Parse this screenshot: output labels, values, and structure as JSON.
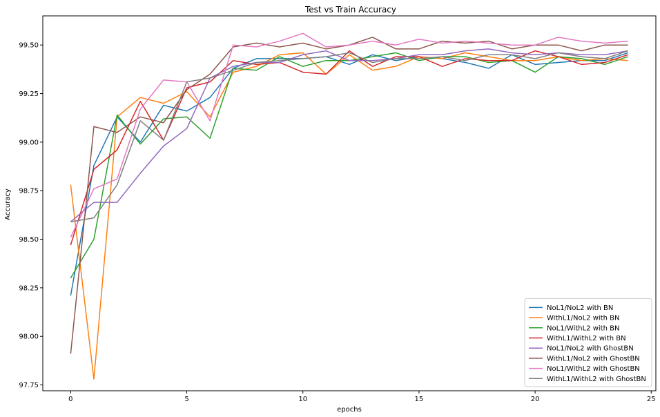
{
  "chart_data": {
    "type": "line",
    "title": "Test vs Train Accuracy",
    "xlabel": "epochs",
    "ylabel": "Accuracy",
    "xlim": [
      -1.2,
      25.2
    ],
    "ylim": [
      97.72,
      99.65
    ],
    "xticks": [
      0,
      5,
      10,
      15,
      20,
      25
    ],
    "yticks": [
      97.75,
      98.0,
      98.25,
      98.5,
      98.75,
      99.0,
      99.25,
      99.5
    ],
    "ytick_labels": [
      "97.75",
      "98.00",
      "98.25",
      "98.50",
      "98.75",
      "99.00",
      "99.25",
      "99.50"
    ],
    "grid": false,
    "legend_position": "lower-right",
    "x": [
      0,
      1,
      2,
      3,
      4,
      5,
      6,
      7,
      8,
      9,
      10,
      11,
      12,
      13,
      14,
      15,
      16,
      17,
      18,
      19,
      20,
      21,
      22,
      23,
      24
    ],
    "series": [
      {
        "name": "NoL1/NoL2 with BN",
        "color": "#1f77b4",
        "values": [
          98.21,
          98.88,
          99.13,
          99.0,
          99.19,
          99.16,
          99.23,
          99.38,
          99.43,
          99.43,
          99.43,
          99.44,
          99.4,
          99.45,
          99.42,
          99.44,
          99.43,
          99.41,
          99.38,
          99.45,
          99.4,
          99.41,
          99.42,
          99.42,
          99.46
        ]
      },
      {
        "name": "WithL1/NoL2 with BN",
        "color": "#ff7f0e",
        "values": [
          98.78,
          97.78,
          99.13,
          99.23,
          99.2,
          99.26,
          99.13,
          99.36,
          99.39,
          99.45,
          99.46,
          99.35,
          99.45,
          99.37,
          99.39,
          99.44,
          99.43,
          99.46,
          99.44,
          99.42,
          99.42,
          99.44,
          99.42,
          99.43,
          99.42
        ]
      },
      {
        "name": "NoL1/WithL2 with BN",
        "color": "#2ca02c",
        "values": [
          98.3,
          98.5,
          99.14,
          98.99,
          99.12,
          99.13,
          99.02,
          99.38,
          99.37,
          99.44,
          99.39,
          99.42,
          99.42,
          99.44,
          99.46,
          99.42,
          99.44,
          99.44,
          99.41,
          99.42,
          99.36,
          99.44,
          99.43,
          99.4,
          99.44
        ]
      },
      {
        "name": "WithL1/WithL2 with BN",
        "color": "#d62728",
        "values": [
          98.47,
          98.86,
          98.96,
          99.21,
          99.01,
          99.28,
          99.31,
          99.42,
          99.4,
          99.41,
          99.36,
          99.35,
          99.47,
          99.39,
          99.44,
          99.44,
          99.39,
          99.43,
          99.42,
          99.42,
          99.47,
          99.44,
          99.4,
          99.41,
          99.45
        ]
      },
      {
        "name": "NoL1/NoL2 with GhostBN",
        "color": "#9467bd",
        "values": [
          98.59,
          98.69,
          98.69,
          98.84,
          98.98,
          99.07,
          99.33,
          99.39,
          99.41,
          99.41,
          99.45,
          99.47,
          99.42,
          99.42,
          99.43,
          99.45,
          99.45,
          99.47,
          99.48,
          99.46,
          99.45,
          99.46,
          99.45,
          99.45,
          99.47
        ]
      },
      {
        "name": "WithL1/NoL2 with GhostBN",
        "color": "#8c564b",
        "values": [
          97.91,
          99.08,
          99.05,
          99.13,
          99.1,
          99.27,
          99.35,
          99.49,
          99.51,
          99.49,
          99.51,
          99.48,
          99.5,
          99.54,
          99.48,
          99.48,
          99.52,
          99.51,
          99.52,
          99.48,
          99.5,
          99.5,
          99.47,
          99.5,
          99.5
        ]
      },
      {
        "name": "NoL1/WithL2 with GhostBN",
        "color": "#e377c2",
        "values": [
          98.51,
          98.76,
          98.81,
          99.17,
          99.32,
          99.31,
          99.11,
          99.5,
          99.49,
          99.52,
          99.56,
          99.49,
          99.5,
          99.52,
          99.5,
          99.53,
          99.51,
          99.52,
          99.51,
          99.5,
          99.5,
          99.54,
          99.52,
          99.51,
          99.52
        ]
      },
      {
        "name": "WithL1/WithL2 with GhostBN",
        "color": "#7f7f7f",
        "values": [
          98.59,
          98.61,
          98.78,
          99.11,
          99.01,
          99.31,
          99.33,
          99.37,
          99.41,
          99.42,
          99.43,
          99.44,
          99.46,
          99.41,
          99.43,
          99.43,
          99.44,
          99.42,
          99.45,
          99.45,
          99.43,
          99.46,
          99.44,
          99.43,
          99.47
        ]
      }
    ]
  }
}
